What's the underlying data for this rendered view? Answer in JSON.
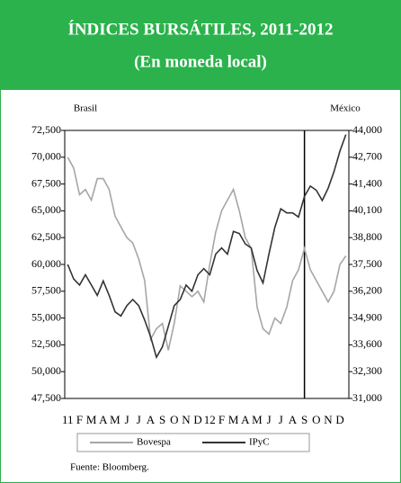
{
  "chart_data": {
    "type": "line",
    "title": "ÍNDICES BURSÁTILES, 2011-2012",
    "subtitle": "(En moneda local)",
    "y_label": "Brasil",
    "y2_label": "México",
    "source": "Fuente:  Bloomberg.",
    "categories": [
      "11",
      null,
      "F",
      null,
      "M",
      null,
      "A",
      null,
      "M",
      null,
      "J",
      null,
      "J",
      null,
      "A",
      null,
      "S",
      null,
      "O",
      null,
      "N",
      null,
      "D",
      null,
      "12",
      null,
      "F",
      null,
      "M",
      null,
      "A",
      null,
      "M",
      null,
      "J",
      null,
      "J",
      null,
      "A",
      null,
      "S",
      null,
      "O",
      null,
      "N",
      null,
      "D",
      null
    ],
    "series": [
      {
        "name": "Bovespa",
        "color": "#a6a6a6",
        "values": [
          70000,
          69000,
          66500,
          67000,
          66000,
          68000,
          68000,
          67000,
          64500,
          63500,
          62500,
          62000,
          60500,
          58500,
          53000,
          54000,
          54500,
          52000,
          54500,
          58000,
          57500,
          57000,
          57500,
          56500,
          60000,
          63000,
          65000,
          66000,
          67000,
          65000,
          62500,
          61500,
          56000,
          54000,
          53500,
          55000,
          54500,
          56000,
          58500,
          59500,
          61500,
          59500,
          58500,
          57500,
          56500,
          57500,
          60000,
          60800
        ]
      },
      {
        "name": "IPyC",
        "color": "#333333",
        "axis": "y2",
        "values": [
          37500,
          36800,
          36500,
          37000,
          36500,
          36000,
          36700,
          36000,
          35200,
          35000,
          35500,
          35800,
          35500,
          34800,
          34000,
          33000,
          33500,
          34500,
          35500,
          35800,
          36500,
          36200,
          37000,
          37300,
          37000,
          38000,
          38300,
          38000,
          39100,
          39000,
          38500,
          38300,
          37200,
          36600,
          38000,
          39300,
          40200,
          40000,
          40000,
          39800,
          40800,
          41300,
          41100,
          40600,
          41200,
          42000,
          43000,
          43800
        ]
      }
    ],
    "ylim": [
      47500,
      72500
    ],
    "yticks": [
      {
        "value": 47500,
        "label": "47,500"
      },
      {
        "value": 50000,
        "label": "50,000"
      },
      {
        "value": 52500,
        "label": "52,500"
      },
      {
        "value": 55000,
        "label": "55,000"
      },
      {
        "value": 57500,
        "label": "57,500"
      },
      {
        "value": 60000,
        "label": "60,000"
      },
      {
        "value": 62500,
        "label": "62,500"
      },
      {
        "value": 65000,
        "label": "65,000"
      },
      {
        "value": 67500,
        "label": "67,500"
      },
      {
        "value": 70000,
        "label": "70,000"
      },
      {
        "value": 72500,
        "label": "72,500"
      }
    ],
    "y2lim": [
      31000,
      44000
    ],
    "y2ticks": [
      {
        "value": 31000,
        "label": "31,000"
      },
      {
        "value": 32300,
        "label": "32,300"
      },
      {
        "value": 33600,
        "label": "33,600"
      },
      {
        "value": 34900,
        "label": "34,900"
      },
      {
        "value": 36200,
        "label": "36,200"
      },
      {
        "value": 37500,
        "label": "37,500"
      },
      {
        "value": 38800,
        "label": "38,800"
      },
      {
        "value": 40100,
        "label": "40,100"
      },
      {
        "value": 41400,
        "label": "41,400"
      },
      {
        "value": 42700,
        "label": "42,700"
      },
      {
        "value": 44000,
        "label": "44,000"
      }
    ],
    "grid": false,
    "legend": "bottom"
  }
}
